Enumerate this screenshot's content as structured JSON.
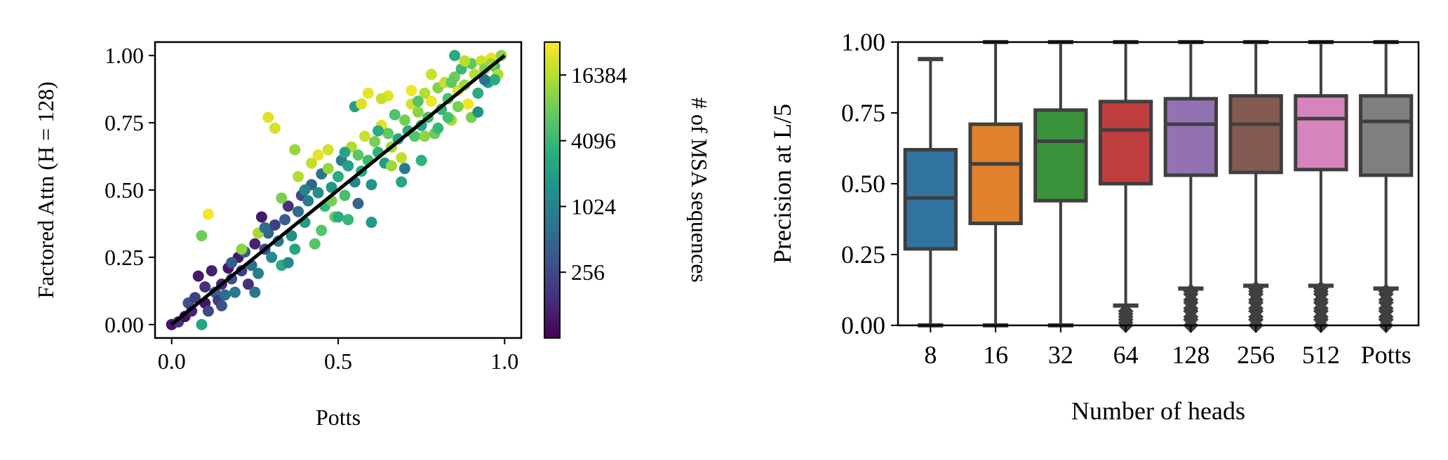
{
  "chart_data": [
    {
      "type": "scatter",
      "xlabel": "Potts",
      "ylabel": "Factored Attn (H = 128)",
      "xlim": [
        -0.05,
        1.05
      ],
      "ylim": [
        -0.05,
        1.05
      ],
      "xticks": [
        "0.0",
        "0.5",
        "1.0"
      ],
      "yticks": [
        "0.00",
        "0.25",
        "0.50",
        "0.75",
        "1.00"
      ],
      "reference_line": {
        "from": [
          0,
          0
        ],
        "to": [
          1,
          1
        ],
        "color": "#000000"
      },
      "colorbar": {
        "label": "# of MSA sequences",
        "scale": "log2",
        "range": [
          64,
          32768
        ],
        "ticks": [
          "256",
          "1024",
          "4096",
          "16384"
        ],
        "colormap": "viridis"
      },
      "points": [
        [
          0.0,
          0.0,
          90
        ],
        [
          0.02,
          0.01,
          150
        ],
        [
          0.04,
          0.03,
          80
        ],
        [
          0.05,
          0.08,
          300
        ],
        [
          0.06,
          0.05,
          120
        ],
        [
          0.07,
          0.1,
          200
        ],
        [
          0.08,
          0.18,
          100
        ],
        [
          0.09,
          0.0,
          2500
        ],
        [
          0.1,
          0.08,
          90
        ],
        [
          0.1,
          0.14,
          150
        ],
        [
          0.11,
          0.05,
          250
        ],
        [
          0.12,
          0.2,
          110
        ],
        [
          0.13,
          0.12,
          400
        ],
        [
          0.14,
          0.09,
          180
        ],
        [
          0.15,
          0.15,
          130
        ],
        [
          0.16,
          0.11,
          600
        ],
        [
          0.17,
          0.21,
          90
        ],
        [
          0.18,
          0.17,
          300
        ],
        [
          0.19,
          0.12,
          800
        ],
        [
          0.2,
          0.25,
          100
        ],
        [
          0.21,
          0.2,
          200
        ],
        [
          0.22,
          0.27,
          350
        ],
        [
          0.23,
          0.15,
          150
        ],
        [
          0.24,
          0.22,
          600
        ],
        [
          0.25,
          0.3,
          120
        ],
        [
          0.26,
          0.19,
          900
        ],
        [
          0.27,
          0.4,
          100
        ],
        [
          0.28,
          0.28,
          250
        ],
        [
          0.29,
          0.34,
          500
        ],
        [
          0.3,
          0.25,
          1200
        ],
        [
          0.31,
          0.37,
          200
        ],
        [
          0.32,
          0.31,
          700
        ],
        [
          0.33,
          0.22,
          3000
        ],
        [
          0.34,
          0.39,
          400
        ],
        [
          0.35,
          0.44,
          150
        ],
        [
          0.36,
          0.33,
          1500
        ],
        [
          0.37,
          0.28,
          2500
        ],
        [
          0.38,
          0.42,
          600
        ],
        [
          0.39,
          0.48,
          250
        ],
        [
          0.4,
          0.38,
          2000
        ],
        [
          0.41,
          0.46,
          900
        ],
        [
          0.42,
          0.52,
          500
        ],
        [
          0.43,
          0.3,
          6000
        ],
        [
          0.44,
          0.49,
          1300
        ],
        [
          0.45,
          0.56,
          700
        ],
        [
          0.46,
          0.44,
          4000
        ],
        [
          0.47,
          0.58,
          12000
        ],
        [
          0.48,
          0.51,
          1800
        ],
        [
          0.49,
          0.4,
          8000
        ],
        [
          0.5,
          0.55,
          3000
        ],
        [
          0.51,
          0.61,
          900
        ],
        [
          0.52,
          0.48,
          5000
        ],
        [
          0.53,
          0.59,
          2200
        ],
        [
          0.54,
          0.66,
          15000
        ],
        [
          0.55,
          0.53,
          1100
        ],
        [
          0.56,
          0.63,
          6500
        ],
        [
          0.57,
          0.57,
          2800
        ],
        [
          0.58,
          0.7,
          20000
        ],
        [
          0.59,
          0.61,
          4500
        ],
        [
          0.6,
          0.52,
          1600
        ],
        [
          0.61,
          0.68,
          9000
        ],
        [
          0.62,
          0.64,
          3500
        ],
        [
          0.63,
          0.74,
          25000
        ],
        [
          0.64,
          0.6,
          1900
        ],
        [
          0.65,
          0.71,
          7000
        ],
        [
          0.66,
          0.66,
          13000
        ],
        [
          0.67,
          0.78,
          5500
        ],
        [
          0.68,
          0.69,
          2400
        ],
        [
          0.69,
          0.62,
          18000
        ],
        [
          0.7,
          0.76,
          8500
        ],
        [
          0.71,
          0.72,
          3200
        ],
        [
          0.72,
          0.82,
          22000
        ],
        [
          0.73,
          0.7,
          6000
        ],
        [
          0.74,
          0.79,
          11000
        ],
        [
          0.75,
          0.74,
          2600
        ],
        [
          0.76,
          0.86,
          16000
        ],
        [
          0.77,
          0.77,
          4800
        ],
        [
          0.78,
          0.83,
          28000
        ],
        [
          0.79,
          0.71,
          7500
        ],
        [
          0.8,
          0.88,
          10000
        ],
        [
          0.81,
          0.8,
          3800
        ],
        [
          0.82,
          0.9,
          19000
        ],
        [
          0.83,
          0.84,
          5200
        ],
        [
          0.84,
          0.76,
          14000
        ],
        [
          0.85,
          0.92,
          8000
        ],
        [
          0.86,
          0.87,
          24000
        ],
        [
          0.87,
          0.95,
          4200
        ],
        [
          0.88,
          0.89,
          12500
        ],
        [
          0.89,
          0.82,
          30000
        ],
        [
          0.9,
          0.97,
          6800
        ],
        [
          0.91,
          0.93,
          17000
        ],
        [
          0.92,
          0.86,
          3000
        ],
        [
          0.93,
          0.98,
          21000
        ],
        [
          0.94,
          0.95,
          9500
        ],
        [
          0.95,
          0.9,
          2000
        ],
        [
          0.96,
          0.99,
          26000
        ],
        [
          0.97,
          0.96,
          5000
        ],
        [
          0.98,
          0.93,
          15500
        ],
        [
          0.99,
          1.0,
          11000
        ],
        [
          0.11,
          0.41,
          30000
        ],
        [
          0.09,
          0.33,
          8000
        ],
        [
          0.29,
          0.77,
          25000
        ],
        [
          0.31,
          0.73,
          22000
        ],
        [
          0.55,
          0.81,
          2000
        ],
        [
          0.37,
          0.65,
          12000
        ],
        [
          0.45,
          0.35,
          6000
        ],
        [
          0.5,
          0.4,
          3000
        ],
        [
          0.53,
          0.39,
          4000
        ],
        [
          0.6,
          0.38,
          1800
        ],
        [
          0.69,
          0.53,
          2500
        ],
        [
          0.75,
          0.61,
          3500
        ],
        [
          0.83,
          0.77,
          5000
        ],
        [
          0.9,
          0.77,
          9000
        ],
        [
          0.97,
          0.91,
          3000
        ],
        [
          0.85,
          1.0,
          2800
        ],
        [
          0.65,
          0.85,
          24000
        ],
        [
          0.59,
          0.86,
          27000
        ],
        [
          0.42,
          0.6,
          18000
        ],
        [
          0.47,
          0.65,
          21000
        ],
        [
          0.33,
          0.47,
          9000
        ],
        [
          0.26,
          0.34,
          14000
        ],
        [
          0.38,
          0.55,
          16000
        ],
        [
          0.21,
          0.28,
          11000
        ],
        [
          0.44,
          0.63,
          26000
        ],
        [
          0.57,
          0.82,
          23000
        ],
        [
          0.63,
          0.84,
          19000
        ],
        [
          0.72,
          0.87,
          29000
        ],
        [
          0.78,
          0.93,
          20000
        ],
        [
          0.88,
          0.98,
          17000
        ],
        [
          0.94,
          0.91,
          700
        ],
        [
          0.92,
          0.79,
          1500
        ],
        [
          0.8,
          0.73,
          4000
        ],
        [
          0.7,
          0.58,
          800
        ],
        [
          0.56,
          0.45,
          500
        ],
        [
          0.35,
          0.23,
          1200
        ],
        [
          0.25,
          0.12,
          700
        ],
        [
          0.15,
          0.07,
          300
        ],
        [
          0.18,
          0.23,
          400
        ],
        [
          0.28,
          0.36,
          600
        ],
        [
          0.4,
          0.5,
          1000
        ],
        [
          0.52,
          0.64,
          2500
        ],
        [
          0.62,
          0.72,
          3000
        ],
        [
          0.74,
          0.83,
          6000
        ],
        [
          0.84,
          0.9,
          7000
        ],
        [
          0.96,
          0.97,
          12000
        ],
        [
          0.86,
          0.81,
          9000
        ],
        [
          0.76,
          0.7,
          11000
        ],
        [
          0.66,
          0.59,
          13000
        ],
        [
          0.48,
          0.46,
          8500
        ]
      ]
    },
    {
      "type": "box",
      "xlabel": "Number of heads",
      "ylabel": "Precision at L/5",
      "ylim": [
        0,
        1
      ],
      "yticks": [
        "0.00",
        "0.25",
        "0.50",
        "0.75",
        "1.00"
      ],
      "categories": [
        "8",
        "16",
        "32",
        "64",
        "128",
        "256",
        "512",
        "Potts"
      ],
      "colors": [
        "#3274a1",
        "#e1812c",
        "#3a923a",
        "#c03d3e",
        "#9372b2",
        "#845b53",
        "#d684bd",
        "#7f7f7f"
      ],
      "boxes": [
        {
          "q1": 0.27,
          "median": 0.45,
          "q3": 0.62,
          "whisker_low": 0.0,
          "whisker_high": 0.94,
          "outliers": []
        },
        {
          "q1": 0.36,
          "median": 0.57,
          "q3": 0.71,
          "whisker_low": 0.0,
          "whisker_high": 1.0,
          "outliers": []
        },
        {
          "q1": 0.44,
          "median": 0.65,
          "q3": 0.76,
          "whisker_low": 0.0,
          "whisker_high": 1.0,
          "outliers": []
        },
        {
          "q1": 0.5,
          "median": 0.69,
          "q3": 0.79,
          "whisker_low": 0.07,
          "whisker_high": 1.0,
          "outliers": [
            0.0,
            0.01,
            0.02,
            0.03,
            0.04,
            0.05
          ]
        },
        {
          "q1": 0.53,
          "median": 0.71,
          "q3": 0.8,
          "whisker_low": 0.13,
          "whisker_high": 1.0,
          "outliers": [
            0.0,
            0.02,
            0.03,
            0.05,
            0.06,
            0.08,
            0.09,
            0.11,
            0.12
          ]
        },
        {
          "q1": 0.54,
          "median": 0.71,
          "q3": 0.81,
          "whisker_low": 0.14,
          "whisker_high": 1.0,
          "outliers": [
            0.0,
            0.02,
            0.03,
            0.05,
            0.06,
            0.08,
            0.09,
            0.11,
            0.12,
            0.13
          ]
        },
        {
          "q1": 0.55,
          "median": 0.73,
          "q3": 0.81,
          "whisker_low": 0.14,
          "whisker_high": 1.0,
          "outliers": [
            0.0,
            0.02,
            0.03,
            0.05,
            0.06,
            0.08,
            0.09,
            0.11,
            0.12,
            0.13
          ]
        },
        {
          "q1": 0.53,
          "median": 0.72,
          "q3": 0.81,
          "whisker_low": 0.13,
          "whisker_high": 1.0,
          "outliers": [
            0.0,
            0.02,
            0.03,
            0.05,
            0.06,
            0.08,
            0.09,
            0.11,
            0.12
          ]
        }
      ]
    }
  ]
}
